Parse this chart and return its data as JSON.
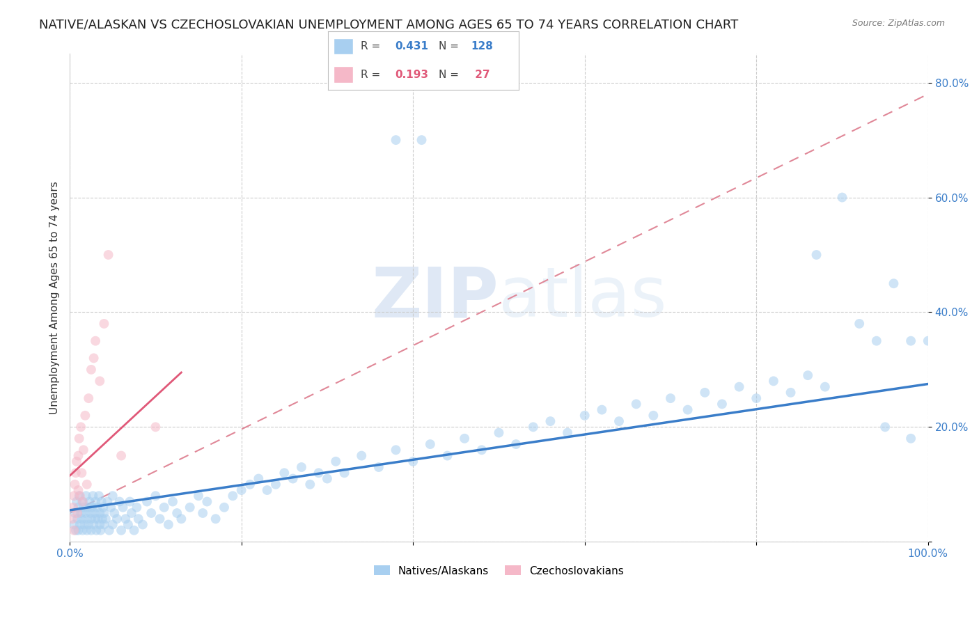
{
  "title": "NATIVE/ALASKAN VS CZECHOSLOVAKIAN UNEMPLOYMENT AMONG AGES 65 TO 74 YEARS CORRELATION CHART",
  "source": "Source: ZipAtlas.com",
  "ylabel": "Unemployment Among Ages 65 to 74 years",
  "xlim": [
    0,
    1.0
  ],
  "ylim": [
    0,
    0.85
  ],
  "ytick_positions": [
    0.0,
    0.2,
    0.4,
    0.6,
    0.8
  ],
  "yticklabels": [
    "",
    "20.0%",
    "40.0%",
    "60.0%",
    "80.0%"
  ],
  "xtick_positions": [
    0.0,
    0.2,
    0.4,
    0.6,
    0.8,
    1.0
  ],
  "xticklabels": [
    "0.0%",
    "",
    "",
    "",
    "",
    "100.0%"
  ],
  "blue_color": "#A8CFF0",
  "blue_line_color": "#3A7DC9",
  "pink_color": "#F5B8C8",
  "pink_line_color": "#E05878",
  "pink_dash_color": "#E08898",
  "legend_R_blue": "0.431",
  "legend_N_blue": "128",
  "legend_R_pink": "0.193",
  "legend_N_pink": "27",
  "blue_trend_x": [
    0.0,
    1.0
  ],
  "blue_trend_y": [
    0.055,
    0.275
  ],
  "pink_trend_x": [
    0.0,
    0.13
  ],
  "pink_trend_y": [
    0.115,
    0.295
  ],
  "pink_dash_trend_x": [
    0.0,
    1.0
  ],
  "pink_dash_trend_y": [
    0.05,
    0.78
  ],
  "background_color": "#FFFFFF",
  "grid_color": "#CCCCCC",
  "title_fontsize": 13,
  "label_fontsize": 11,
  "tick_fontsize": 11,
  "marker_size": 100,
  "marker_alpha": 0.55,
  "watermark_color": "#C8DCF0",
  "watermark_alpha": 0.5
}
